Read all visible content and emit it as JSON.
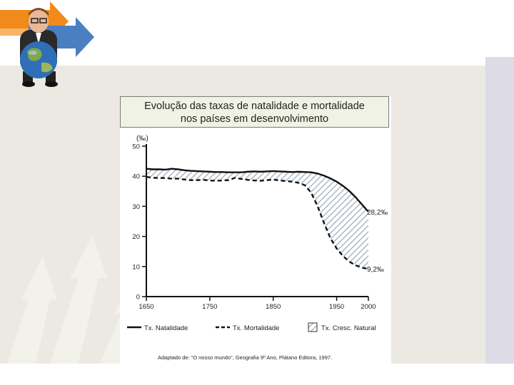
{
  "chart_data": {
    "type": "line",
    "title": "Evolução das taxas de natalidade e mortalidade nos países em desenvolvimento",
    "title_lines": [
      "Evolução das taxas de natalidade e mortalidade",
      "nos países em desenvolvimento"
    ],
    "ylabel": "(‰)",
    "ylim": [
      0,
      50
    ],
    "yticks": [
      "0",
      "10",
      "20",
      "30",
      "40",
      "50"
    ],
    "xlim": [
      1650,
      2000
    ],
    "xticks": [
      "1650",
      "1750",
      "1850",
      "1950",
      "2000"
    ],
    "series": [
      {
        "name": "Tx. Natalidade",
        "style": "solid",
        "points": [
          [
            1650,
            42.5
          ],
          [
            1660,
            42.3
          ],
          [
            1670,
            42.3
          ],
          [
            1680,
            42.2
          ],
          [
            1690,
            42.5
          ],
          [
            1700,
            42.3
          ],
          [
            1710,
            42.0
          ],
          [
            1720,
            41.8
          ],
          [
            1730,
            41.7
          ],
          [
            1740,
            41.6
          ],
          [
            1750,
            41.5
          ],
          [
            1760,
            41.4
          ],
          [
            1770,
            41.4
          ],
          [
            1780,
            41.3
          ],
          [
            1790,
            41.3
          ],
          [
            1800,
            41.3
          ],
          [
            1810,
            41.5
          ],
          [
            1820,
            41.6
          ],
          [
            1830,
            41.5
          ],
          [
            1840,
            41.6
          ],
          [
            1850,
            41.7
          ],
          [
            1860,
            41.6
          ],
          [
            1870,
            41.5
          ],
          [
            1880,
            41.4
          ],
          [
            1890,
            41.5
          ],
          [
            1900,
            41.4
          ],
          [
            1910,
            41.3
          ],
          [
            1920,
            40.9
          ],
          [
            1930,
            40.2
          ],
          [
            1940,
            39.3
          ],
          [
            1950,
            38.2
          ],
          [
            1960,
            36.8
          ],
          [
            1970,
            35.1
          ],
          [
            1980,
            33.0
          ],
          [
            1990,
            30.6
          ],
          [
            2000,
            28.2
          ]
        ]
      },
      {
        "name": "Tx. Mortalidade",
        "style": "dashed",
        "points": [
          [
            1650,
            39.8
          ],
          [
            1660,
            39.5
          ],
          [
            1670,
            39.4
          ],
          [
            1680,
            39.4
          ],
          [
            1690,
            39.2
          ],
          [
            1700,
            39.2
          ],
          [
            1710,
            38.9
          ],
          [
            1720,
            38.7
          ],
          [
            1730,
            38.7
          ],
          [
            1740,
            38.8
          ],
          [
            1750,
            38.6
          ],
          [
            1760,
            38.5
          ],
          [
            1770,
            38.6
          ],
          [
            1780,
            38.7
          ],
          [
            1790,
            39.5
          ],
          [
            1800,
            39.1
          ],
          [
            1810,
            38.8
          ],
          [
            1820,
            38.6
          ],
          [
            1830,
            38.5
          ],
          [
            1840,
            38.7
          ],
          [
            1850,
            38.9
          ],
          [
            1860,
            38.6
          ],
          [
            1870,
            38.4
          ],
          [
            1880,
            38.2
          ],
          [
            1890,
            37.8
          ],
          [
            1900,
            37.0
          ],
          [
            1910,
            34.5
          ],
          [
            1920,
            30.0
          ],
          [
            1930,
            24.5
          ],
          [
            1940,
            19.5
          ],
          [
            1950,
            16.0
          ],
          [
            1960,
            13.5
          ],
          [
            1970,
            11.6
          ],
          [
            1980,
            10.4
          ],
          [
            1990,
            9.6
          ],
          [
            2000,
            9.2
          ]
        ]
      }
    ],
    "area": {
      "name": "Tx. Cresc. Natural",
      "between": [
        "Tx. Natalidade",
        "Tx. Mortalidade"
      ],
      "pattern": "diagonal hatch"
    },
    "annotations": [
      {
        "x": 2000,
        "y": 28.2,
        "text": "28,2‰"
      },
      {
        "x": 2000,
        "y": 9.2,
        "text": "9,2‰"
      }
    ],
    "legend": {
      "placement": "bottom",
      "items": [
        {
          "label": "Tx. Natalidade",
          "style": "solid"
        },
        {
          "label": "Tx. Mortalidade",
          "style": "dashed"
        },
        {
          "label": "Tx. Cresc. Natural",
          "style": "hatch"
        }
      ]
    },
    "source": "Adaptado de: “O nosso mundo”, Geografia 9º Ano, Plátano Editora, 1997.",
    "grid": false
  },
  "colors": {
    "line": "#111111",
    "hatch": "#8fa2b6",
    "title_bg": "#f0f3e4",
    "slide_bg": "#ebe9e1",
    "arrow_orange": "#f08a1a",
    "arrow_blue": "#4a7fc1"
  },
  "decor": {
    "logo": "businessman-holding-globe-logo"
  }
}
